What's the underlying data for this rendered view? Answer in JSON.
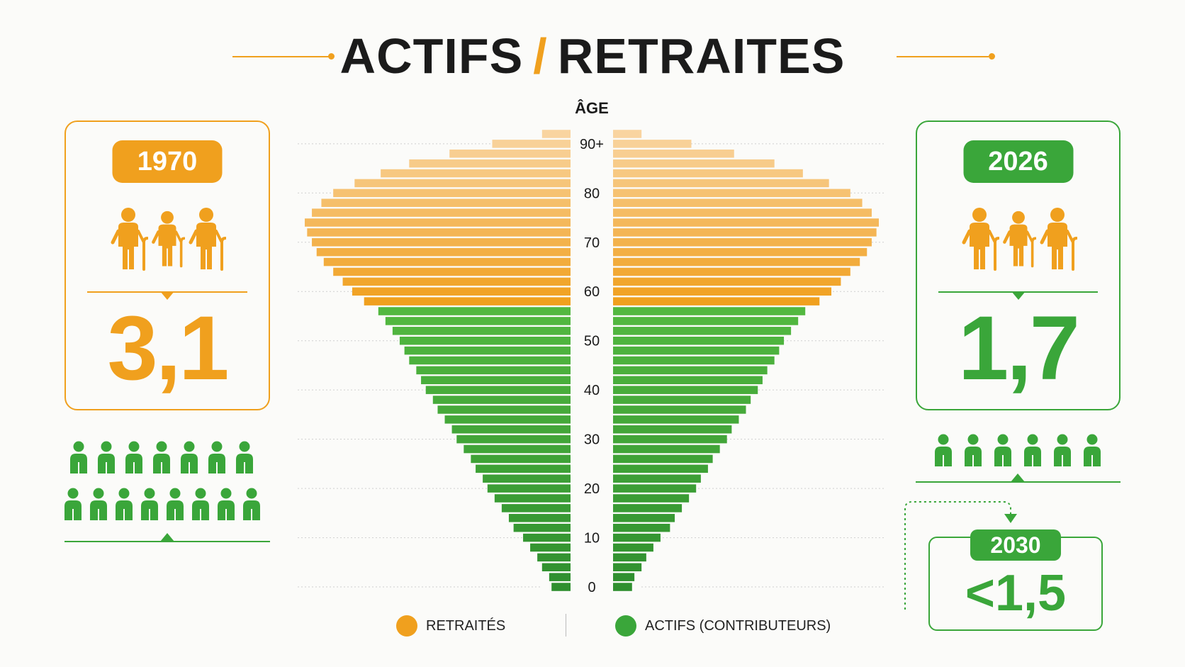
{
  "title": {
    "left": "ACTIFS",
    "slash": "/",
    "right": "RETRAITES"
  },
  "colors": {
    "orange": "#f0a01e",
    "orange_light": "#f8cc8e",
    "green": "#3aa63a",
    "green_dark": "#2f8f2f",
    "text": "#1b1b1b",
    "grid": "#cfcfcf"
  },
  "left_card": {
    "year": "1970",
    "ratio": "3,1",
    "icon": "elderly-person-icon",
    "worker_icon": "person-icon"
  },
  "right_card": {
    "year": "2026",
    "ratio": "1,7",
    "icon": "elderly-person-icon",
    "worker_icon": "person-icon"
  },
  "projection": {
    "year": "2030",
    "value": "<1,5"
  },
  "legend": {
    "retired": "RETRAITÉS",
    "active": "ACTIFS (CONTRIBUTEURS)"
  },
  "chart_data": {
    "type": "bar",
    "orientation": "horizontal",
    "subtype": "population-pyramid",
    "ylabel": "ÂGE",
    "y_ticks": [
      "0",
      "10",
      "20",
      "30",
      "40",
      "50",
      "60",
      "70",
      "80",
      "90+"
    ],
    "retirement_age_threshold": 57,
    "series": [
      {
        "name": "RETRAITÉS",
        "color": "#f0a01e"
      },
      {
        "name": "ACTIFS (CONTRIBUTEURS)",
        "color": "#3aa63a"
      }
    ],
    "age_bins": [
      0,
      2,
      4,
      6,
      8,
      10,
      12,
      14,
      16,
      18,
      20,
      22,
      24,
      26,
      28,
      30,
      32,
      34,
      36,
      38,
      40,
      42,
      44,
      46,
      48,
      50,
      52,
      54,
      56,
      58,
      60,
      62,
      64,
      66,
      68,
      70,
      72,
      74,
      76,
      78,
      80,
      82,
      84,
      86,
      88,
      90,
      92
    ],
    "values": [
      0.8,
      0.9,
      1.2,
      1.4,
      1.7,
      2.0,
      2.4,
      2.6,
      2.9,
      3.2,
      3.5,
      3.7,
      4.0,
      4.2,
      4.5,
      4.8,
      5.0,
      5.3,
      5.6,
      5.8,
      6.1,
      6.3,
      6.5,
      6.8,
      7.0,
      7.2,
      7.5,
      7.8,
      8.1,
      8.7,
      9.2,
      9.6,
      10.0,
      10.4,
      10.7,
      10.9,
      11.1,
      11.2,
      10.9,
      10.5,
      10.0,
      9.1,
      8.0,
      6.8,
      5.1,
      3.3,
      1.2
    ],
    "retired_from_bin": 29,
    "grid": true
  }
}
